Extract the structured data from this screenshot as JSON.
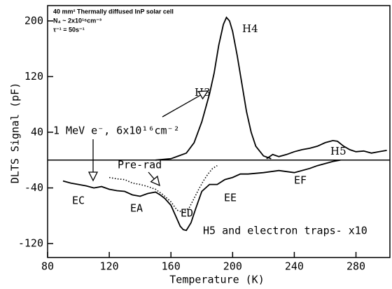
{
  "chart_data": {
    "type": "line",
    "xlabel": "Temperature (K)",
    "ylabel": "DLTS Signal (pF)",
    "xlim": [
      80,
      302
    ],
    "ylim": [
      -140,
      222
    ],
    "xticks": [
      80,
      120,
      160,
      200,
      240,
      280
    ],
    "yticks": [
      -120,
      -40,
      40,
      120,
      200
    ],
    "series": [
      {
        "color": "#000000",
        "style": "solid",
        "x": [
          150,
          160,
          170,
          175,
          180,
          185,
          188,
          191,
          194,
          196,
          198,
          200,
          203,
          206,
          209,
          212,
          215,
          220,
          225
        ],
        "values": [
          0,
          2,
          10,
          25,
          55,
          95,
          125,
          165,
          195,
          205,
          200,
          185,
          150,
          110,
          70,
          40,
          20,
          6,
          2
        ]
      },
      {
        "color": "#000000",
        "style": "solid",
        "x": [
          222,
          226,
          230,
          235,
          240,
          245,
          250,
          255,
          260,
          265,
          268,
          272,
          276,
          280,
          285,
          290,
          295,
          300
        ],
        "values": [
          2,
          8,
          5,
          8,
          12,
          15,
          17,
          20,
          25,
          28,
          27,
          20,
          15,
          12,
          13,
          10,
          12,
          14
        ]
      },
      {
        "color": "#000000",
        "style": "solid",
        "x": [
          90,
          95,
          100,
          105,
          110,
          115,
          120,
          125,
          130,
          135,
          140,
          145,
          150,
          153,
          156,
          160,
          163,
          166,
          168,
          170,
          173,
          176,
          180,
          185,
          190,
          195,
          200,
          205,
          210,
          220,
          230,
          240,
          250,
          255,
          260,
          265,
          270
        ],
        "values": [
          -30,
          -33,
          -35,
          -37,
          -40,
          -38,
          -42,
          -44,
          -45,
          -50,
          -52,
          -48,
          -46,
          -50,
          -55,
          -65,
          -80,
          -95,
          -100,
          -101,
          -90,
          -70,
          -45,
          -35,
          -35,
          -28,
          -25,
          -20,
          -20,
          -18,
          -15,
          -18,
          -12,
          -8,
          -5,
          -2,
          0
        ]
      },
      {
        "color": "#000000",
        "style": "dotted",
        "x": [
          120,
          125,
          130,
          135,
          140,
          145,
          150,
          155,
          160,
          164,
          168,
          172,
          175,
          178,
          181,
          184,
          187,
          190
        ],
        "values": [
          -25,
          -27,
          -28,
          -33,
          -35,
          -38,
          -42,
          -50,
          -60,
          -72,
          -75,
          -68,
          -55,
          -42,
          -30,
          -20,
          -12,
          -8
        ]
      }
    ],
    "inset": [
      "40 mm² Thermally diffused InP solar cell",
      "N₄ ~ 2x10¹⁶cm⁻³",
      "τ⁻¹ = 50s⁻¹"
    ],
    "annotations": [
      "H4",
      "H3",
      "H5",
      "1 MeV e⁻, 6x10¹⁶cm⁻²",
      "Pre-rad",
      "EC",
      "EA",
      "ED",
      "EE",
      "EF",
      "H5 and electron traps- x10"
    ]
  }
}
